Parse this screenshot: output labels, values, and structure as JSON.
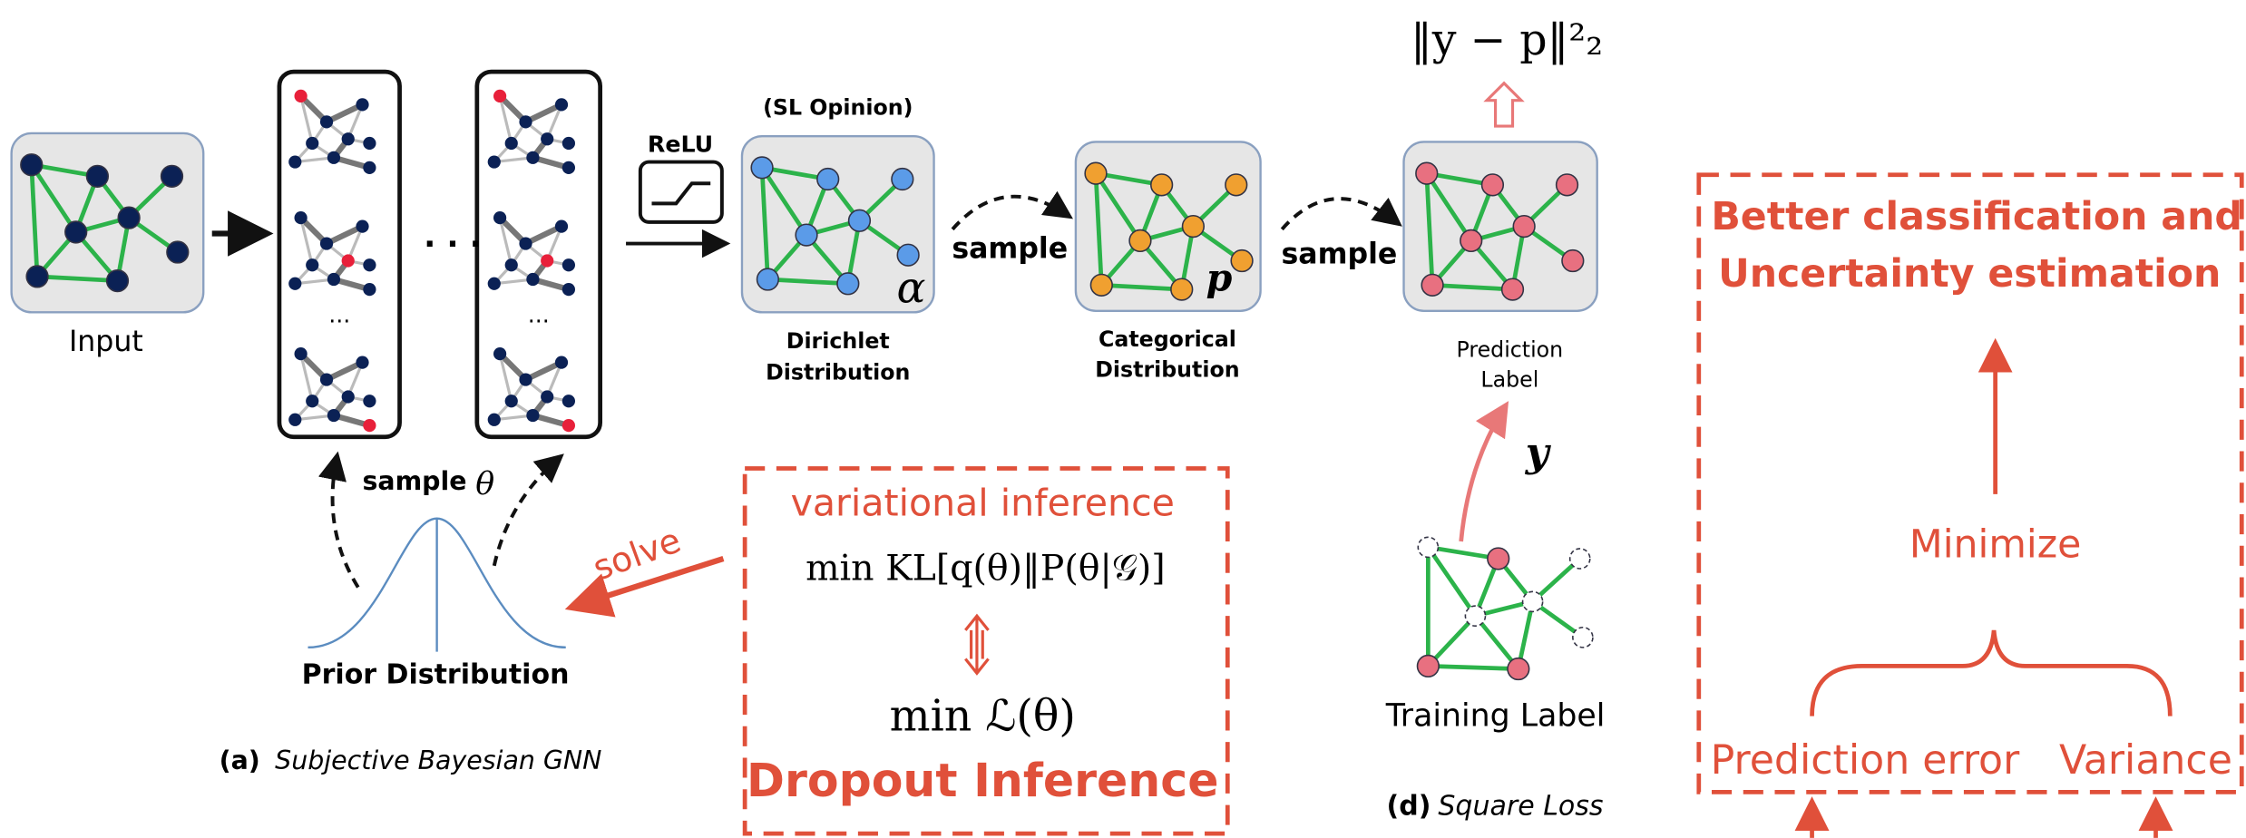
{
  "input": {
    "label": "Input"
  },
  "sampling": {
    "ellipsis_h": "· · ·",
    "ellipsis_v": [
      "...",
      "..."
    ],
    "sample": "sample",
    "theta": "θ"
  },
  "relu": "ReLU",
  "dirichlet": {
    "header": "(SL Opinion)",
    "symbol": "α",
    "lines": [
      "Dirichlet",
      "Distribution"
    ]
  },
  "categorical": {
    "symbol": "p",
    "lines": [
      "Categorical",
      "Distribution"
    ]
  },
  "prediction": {
    "lines": [
      "Prediction",
      "Label"
    ],
    "loss": "‖y − p‖²₂"
  },
  "edge_labels": [
    "sample",
    "sample"
  ],
  "prior": "Prior Distribution",
  "solve": "solve",
  "inference": {
    "title": "variational inference",
    "objective": "min KL[q(θ)‖P(θ|𝒢)]",
    "equivalent": "min ℒ(θ)",
    "name": "Dropout Inference"
  },
  "caption_a": {
    "tag": "(a)",
    "text": "Subjective Bayesian GNN"
  },
  "training": {
    "label": "Training Label",
    "symbol": "y"
  },
  "caption_d": {
    "tag": "(d)",
    "text": "Square Loss"
  },
  "goal": {
    "lines": [
      "Better classification and",
      "Uncertainty estimation"
    ],
    "minimize": "Minimize",
    "terms": [
      "Prediction error",
      "Variance"
    ]
  }
}
